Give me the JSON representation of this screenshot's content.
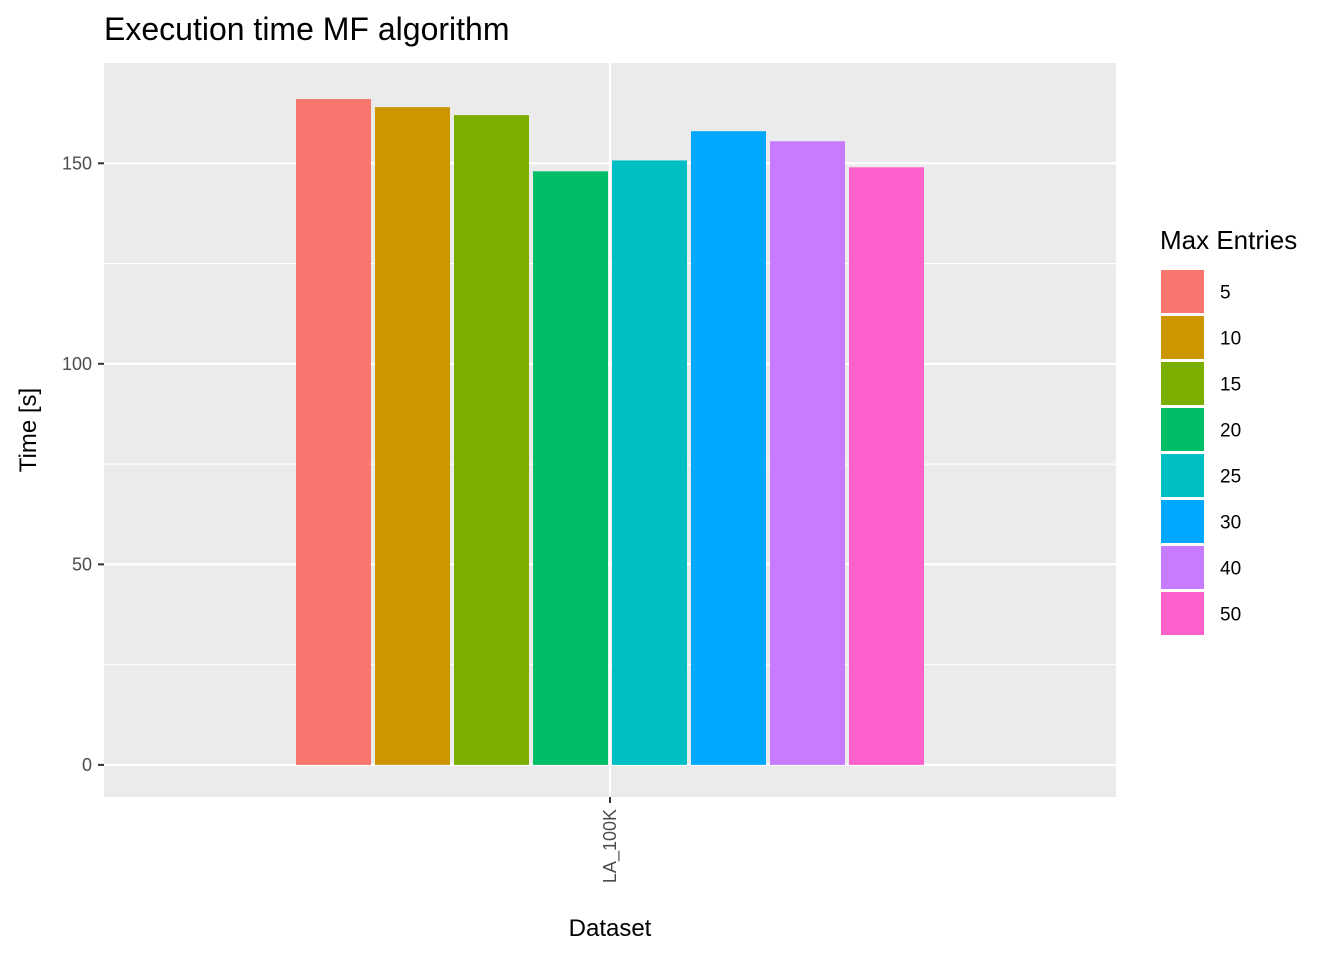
{
  "chart_data": {
    "type": "bar",
    "title": "Execution time MF algorithm",
    "xlabel": "Dataset",
    "ylabel": "Time [s]",
    "categories": [
      "LA_100K"
    ],
    "ylim": [
      -8,
      175
    ],
    "yticks": [
      0,
      50,
      100,
      150
    ],
    "grid": true,
    "legend": {
      "title": "Max Entries",
      "position": "right"
    },
    "series": [
      {
        "name": "5",
        "color": "#F8766D",
        "values": [
          166
        ]
      },
      {
        "name": "10",
        "color": "#CD9600",
        "values": [
          164
        ]
      },
      {
        "name": "15",
        "color": "#7CAE00",
        "values": [
          162
        ]
      },
      {
        "name": "20",
        "color": "#00BE67",
        "values": [
          148
        ]
      },
      {
        "name": "25",
        "color": "#00BFC4",
        "values": [
          150.7
        ]
      },
      {
        "name": "30",
        "color": "#00A9FF",
        "values": [
          158
        ]
      },
      {
        "name": "40",
        "color": "#C77CFF",
        "values": [
          155.5
        ]
      },
      {
        "name": "50",
        "color": "#FF61CC",
        "values": [
          149
        ]
      }
    ]
  },
  "colors": {
    "panel": "#EBEBEB",
    "grid": "#FFFFFF",
    "tick": "#333333"
  }
}
